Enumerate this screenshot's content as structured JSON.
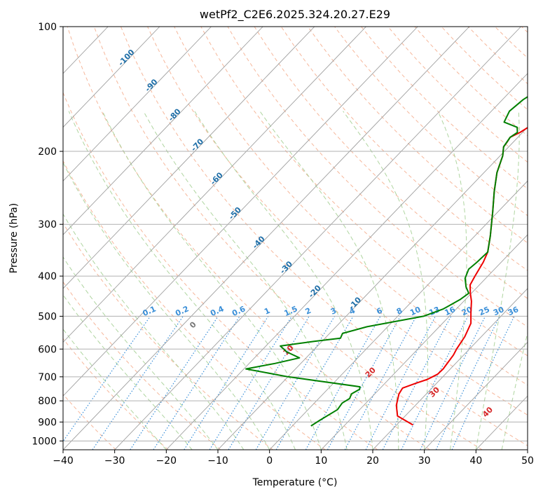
{
  "chart_data": {
    "type": "line",
    "title": "wetPf2_C2E6.2025.324.20.27.E29",
    "xlabel": "Temperature (°C)",
    "ylabel": "Pressure (hPa)",
    "xlim": [
      -40,
      50
    ],
    "ylim": [
      1050,
      100
    ],
    "y_scale": "log",
    "grid": true,
    "x_ticks": [
      -40,
      -30,
      -20,
      -10,
      0,
      10,
      20,
      30,
      40,
      50
    ],
    "y_ticks": [
      100,
      200,
      300,
      400,
      500,
      600,
      700,
      800,
      900,
      1000
    ],
    "series": [
      {
        "color": "#ee0000",
        "points": [
          [
            23.2,
            915
          ],
          [
            18.5,
            870
          ],
          [
            16.3,
            820
          ],
          [
            14.7,
            770
          ],
          [
            14.3,
            745
          ],
          [
            16.0,
            725
          ],
          [
            17.5,
            710
          ],
          [
            18.5,
            690
          ],
          [
            18.6,
            670
          ],
          [
            18.0,
            620
          ],
          [
            17.5,
            600
          ],
          [
            16.8,
            560
          ],
          [
            15.5,
            520
          ],
          [
            13.5,
            490
          ],
          [
            11.5,
            460
          ],
          [
            9.8,
            440
          ],
          [
            8.2,
            420
          ],
          [
            7.5,
            400
          ],
          [
            6.5,
            370
          ],
          [
            5.5,
            350
          ],
          [
            3.0,
            320
          ],
          [
            -1.0,
            280
          ],
          [
            -4.5,
            250
          ],
          [
            -7.5,
            225
          ],
          [
            -9.5,
            205
          ],
          [
            -11.0,
            195
          ],
          [
            -11.2,
            190
          ],
          [
            -11.5,
            185
          ],
          [
            -10.5,
            180
          ],
          [
            -9.5,
            172
          ],
          [
            -7.5,
            165
          ],
          [
            -6.0,
            158
          ],
          [
            -5.0,
            150
          ],
          [
            -4.2,
            142
          ],
          [
            -2.5,
            132
          ],
          [
            -0.5,
            125
          ],
          [
            2.0,
            117
          ],
          [
            3.5,
            110
          ],
          [
            4.5,
            100
          ]
        ]
      },
      {
        "color": "#008000",
        "points": [
          [
            3.6,
            920
          ],
          [
            4.3,
            890
          ],
          [
            5.7,
            840
          ],
          [
            5.4,
            810
          ],
          [
            6.0,
            790
          ],
          [
            5.5,
            770
          ],
          [
            6.2,
            750
          ],
          [
            5.8,
            740
          ],
          [
            -10.0,
            700
          ],
          [
            -19.6,
            670
          ],
          [
            -15.0,
            650
          ],
          [
            -11.3,
            630
          ],
          [
            -14.8,
            610
          ],
          [
            -17.2,
            590
          ],
          [
            -11.5,
            575
          ],
          [
            -7.0,
            565
          ],
          [
            -7.5,
            550
          ],
          [
            -4.0,
            530
          ],
          [
            5.0,
            500
          ],
          [
            7.5,
            480
          ],
          [
            9.0,
            455
          ],
          [
            9.5,
            440
          ],
          [
            7.8,
            425
          ],
          [
            6.0,
            405
          ],
          [
            5.0,
            385
          ],
          [
            5.3,
            370
          ],
          [
            5.5,
            350
          ],
          [
            3.0,
            320
          ],
          [
            -1.0,
            280
          ],
          [
            -4.5,
            250
          ],
          [
            -7.5,
            225
          ],
          [
            -9.5,
            205
          ],
          [
            -11.0,
            195
          ],
          [
            -11.5,
            185
          ],
          [
            -11.0,
            180
          ],
          [
            -12.0,
            175
          ],
          [
            -15.5,
            170
          ],
          [
            -16.5,
            160
          ],
          [
            -16.0,
            150
          ],
          [
            -14.5,
            140
          ],
          [
            -12.5,
            130
          ],
          [
            -10.0,
            120
          ],
          [
            -8.0,
            112
          ],
          [
            -6.0,
            105
          ],
          [
            -4.5,
            100
          ]
        ]
      }
    ],
    "isotherm_labels": [
      "-100",
      "-90",
      "-80",
      "-70",
      "-60",
      "-50",
      "-40",
      "-30",
      "-20",
      "-10"
    ],
    "mixing_ratio_labels": [
      "0.1",
      "0.2",
      "0.4",
      "0.6",
      "1",
      "1.5",
      "2",
      "3",
      "4",
      "6",
      "8",
      "10",
      "13",
      "16",
      "20",
      "25",
      "30",
      "36"
    ],
    "moist_adiabat_labels": [
      "0",
      "10",
      "20",
      "30",
      "40"
    ],
    "colors": {
      "isotherm": "#a0a0a0",
      "dry_adiabat": "#f4a582",
      "moist_adiabat": "#a6d096",
      "mixing_ratio": "#3a8fd8",
      "isotherm_label": "#1f6fa8",
      "moist_label": "#d62728"
    }
  }
}
